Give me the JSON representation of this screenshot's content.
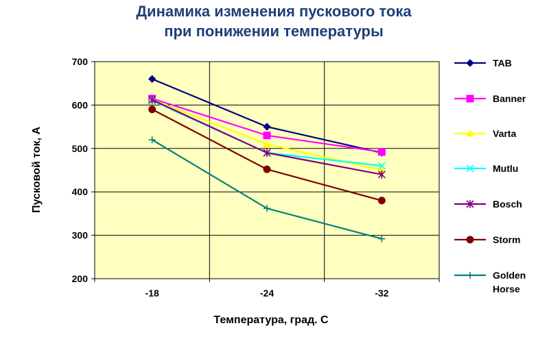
{
  "chart_data": {
    "type": "line",
    "title_lines": [
      "Динамика изменения пускового тока",
      "при понижении температуры"
    ],
    "xlabel": "Температура, град. С",
    "ylabel": "Пусковой ток, А",
    "categories": [
      "-18",
      "-24",
      "-32"
    ],
    "ylim": [
      200,
      700
    ],
    "yticks": [
      200,
      300,
      400,
      500,
      600,
      700
    ],
    "grid": true,
    "legend_position": "right",
    "plot_background": "#ffffc0",
    "series": [
      {
        "name": "TAB",
        "values": [
          660,
          550,
          490
        ],
        "color": "#000080",
        "marker": "diamond"
      },
      {
        "name": "Banner",
        "values": [
          615,
          530,
          492
        ],
        "color": "#ff00ff",
        "marker": "square"
      },
      {
        "name": "Varta",
        "values": [
          612,
          510,
          450
        ],
        "color": "#ffff00",
        "marker": "triangle"
      },
      {
        "name": "Mutlu",
        "values": [
          610,
          490,
          460
        ],
        "color": "#00ffff",
        "marker": "x"
      },
      {
        "name": "Bosch",
        "values": [
          612,
          490,
          440
        ],
        "color": "#800080",
        "marker": "star"
      },
      {
        "name": "Storm",
        "values": [
          590,
          452,
          380
        ],
        "color": "#800000",
        "marker": "circle"
      },
      {
        "name": "Golden Horse",
        "name_lines": [
          "Golden",
          "Horse"
        ],
        "values": [
          520,
          362,
          292
        ],
        "color": "#008080",
        "marker": "plus"
      }
    ]
  }
}
